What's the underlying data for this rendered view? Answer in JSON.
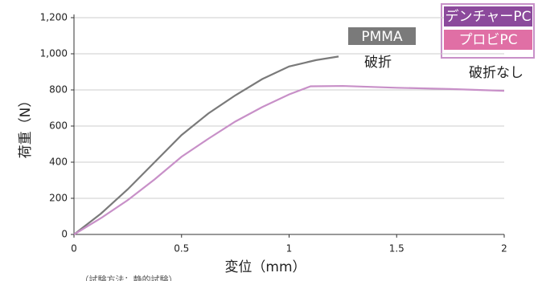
{
  "chart_data": {
    "type": "line",
    "xlabel": "変位（mm）",
    "ylabel": "荷重（N）",
    "note": "（試験方法：静的試験）",
    "xlim": [
      0,
      2
    ],
    "xticks": [
      0,
      0.5,
      1,
      1.5,
      2
    ],
    "ylim": [
      0,
      1200
    ],
    "yticks": [
      0,
      200,
      400,
      600,
      800,
      {
        "value": 1000,
        "label": "1,000"
      },
      {
        "value": 1200,
        "label": "1,200"
      }
    ],
    "grid": true,
    "series": [
      {
        "name": "PMMA",
        "color": "#7a7a7a",
        "x": [
          0,
          0.125,
          0.25,
          0.375,
          0.5,
          0.625,
          0.75,
          0.875,
          1,
          1.125,
          1.23
        ],
        "values": [
          0,
          115,
          250,
          400,
          550,
          670,
          770,
          860,
          930,
          965,
          985
        ]
      },
      {
        "color": "#c890c8",
        "x": [
          0,
          0.125,
          0.25,
          0.375,
          0.5,
          0.625,
          0.75,
          0.875,
          1,
          1.1,
          1.25,
          1.5,
          1.75,
          2
        ],
        "values": [
          0,
          90,
          190,
          305,
          430,
          530,
          625,
          705,
          775,
          820,
          822,
          812,
          805,
          795
        ]
      }
    ],
    "legend": [
      {
        "label": "デンチャーPC",
        "color": "#8c4a9c"
      },
      {
        "label": "プロビPC",
        "color": "#e06fa5"
      }
    ],
    "annotations": [
      "破折",
      "破折なし"
    ]
  }
}
